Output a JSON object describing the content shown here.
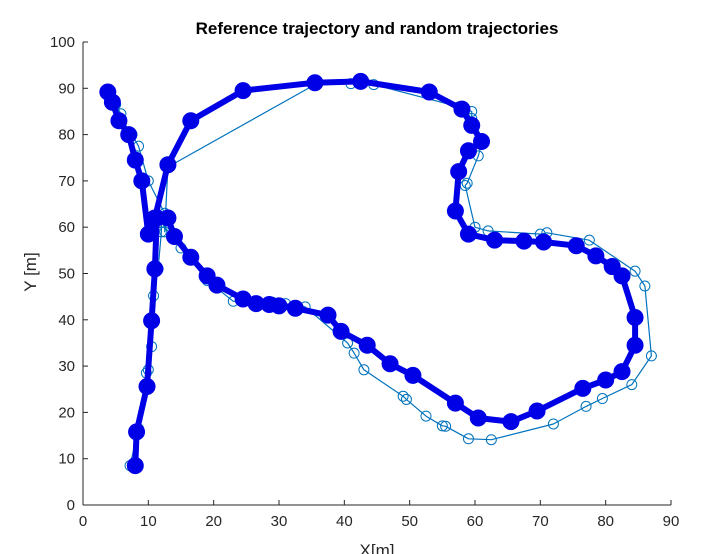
{
  "chart_data": {
    "type": "line",
    "title": "Reference trajectory and random trajectories",
    "xlabel": "X[m]",
    "ylabel": "Y [m]",
    "xlim": [
      0,
      90
    ],
    "ylim": [
      0,
      100
    ],
    "xticks": [
      "0",
      "10",
      "20",
      "30",
      "40",
      "50",
      "60",
      "70",
      "80",
      "90"
    ],
    "yticks": [
      "0",
      "10",
      "20",
      "30",
      "40",
      "50",
      "60",
      "70",
      "80",
      "90",
      "100"
    ],
    "grid": false,
    "series": [
      {
        "color": "#0000e6",
        "style": "thick line with large filled circle markers",
        "x": [
          8,
          8.2,
          9.8,
          10.5,
          11,
          11.3,
          13,
          14,
          16.5,
          19,
          20.5,
          24.5,
          26.5,
          28.5,
          30,
          32.5,
          37.5,
          39.5,
          43.5,
          47,
          50.5,
          57,
          60.5,
          65.5,
          69.5,
          76.5,
          80,
          82.5,
          84.5,
          84.5,
          82.5,
          81,
          78.5,
          75.5,
          70.5,
          67.5,
          63,
          59,
          57,
          57.5,
          59,
          61,
          59.5,
          58,
          53,
          42.5,
          35.5,
          24.5,
          16.5,
          13,
          11,
          10,
          9,
          8,
          7,
          5.5,
          4.5,
          3.8
        ],
        "y": [
          8.5,
          15.8,
          25.6,
          39.8,
          51,
          62,
          62,
          58,
          53.5,
          49.5,
          47.5,
          44.5,
          43.5,
          43.3,
          43,
          42.5,
          41,
          37.5,
          34.5,
          30.5,
          28,
          22,
          18.8,
          18,
          20.3,
          25.2,
          27,
          28.8,
          34.5,
          40.5,
          49.5,
          51.5,
          53.8,
          56,
          56.8,
          57,
          57.2,
          58.5,
          63.5,
          72,
          76.5,
          78.5,
          82,
          85.5,
          89.2,
          91.5,
          91.2,
          89.5,
          83,
          73.5,
          62,
          58.5,
          70,
          74.5,
          80,
          83,
          87,
          89.2
        ]
      },
      {
        "color": "#0072bd",
        "style": "thin line with open circle markers",
        "x": [
          7.2,
          8.5,
          9.7,
          10,
          10.5,
          10.8,
          11.5,
          12,
          12,
          15,
          19,
          23,
          26.5,
          29,
          31,
          34,
          40.5,
          41.5,
          43,
          49,
          49.5,
          52.5,
          55,
          55.5,
          59,
          62.5,
          72,
          77,
          79.5,
          84,
          87,
          86,
          84.5,
          77.5,
          71,
          70,
          62,
          60,
          58.5,
          58.8,
          60.5,
          61.2,
          59.5,
          59.5,
          57.5,
          44.5,
          41,
          35.5,
          13,
          12.5,
          12.5,
          10,
          8.5,
          7.5,
          7,
          5.8,
          5,
          4,
          3.5
        ],
        "y": [
          8.5,
          16.5,
          28.5,
          29.2,
          34.2,
          45.2,
          51,
          59,
          61,
          55.5,
          48.5,
          44,
          43.5,
          43.8,
          43.5,
          42.8,
          35,
          32.8,
          29.2,
          23.5,
          22.8,
          19.2,
          17.1,
          17,
          14.3,
          14.1,
          17.5,
          21.3,
          23,
          26,
          32.2,
          47.3,
          50.5,
          57.2,
          58.8,
          58.5,
          59.2,
          60,
          69,
          69.5,
          75.4,
          79,
          83.5,
          85,
          86,
          90.8,
          91,
          90.8,
          73,
          59,
          63,
          70,
          77.5,
          80,
          80.6,
          84.5,
          86.5,
          88.5,
          89.4
        ]
      }
    ]
  }
}
